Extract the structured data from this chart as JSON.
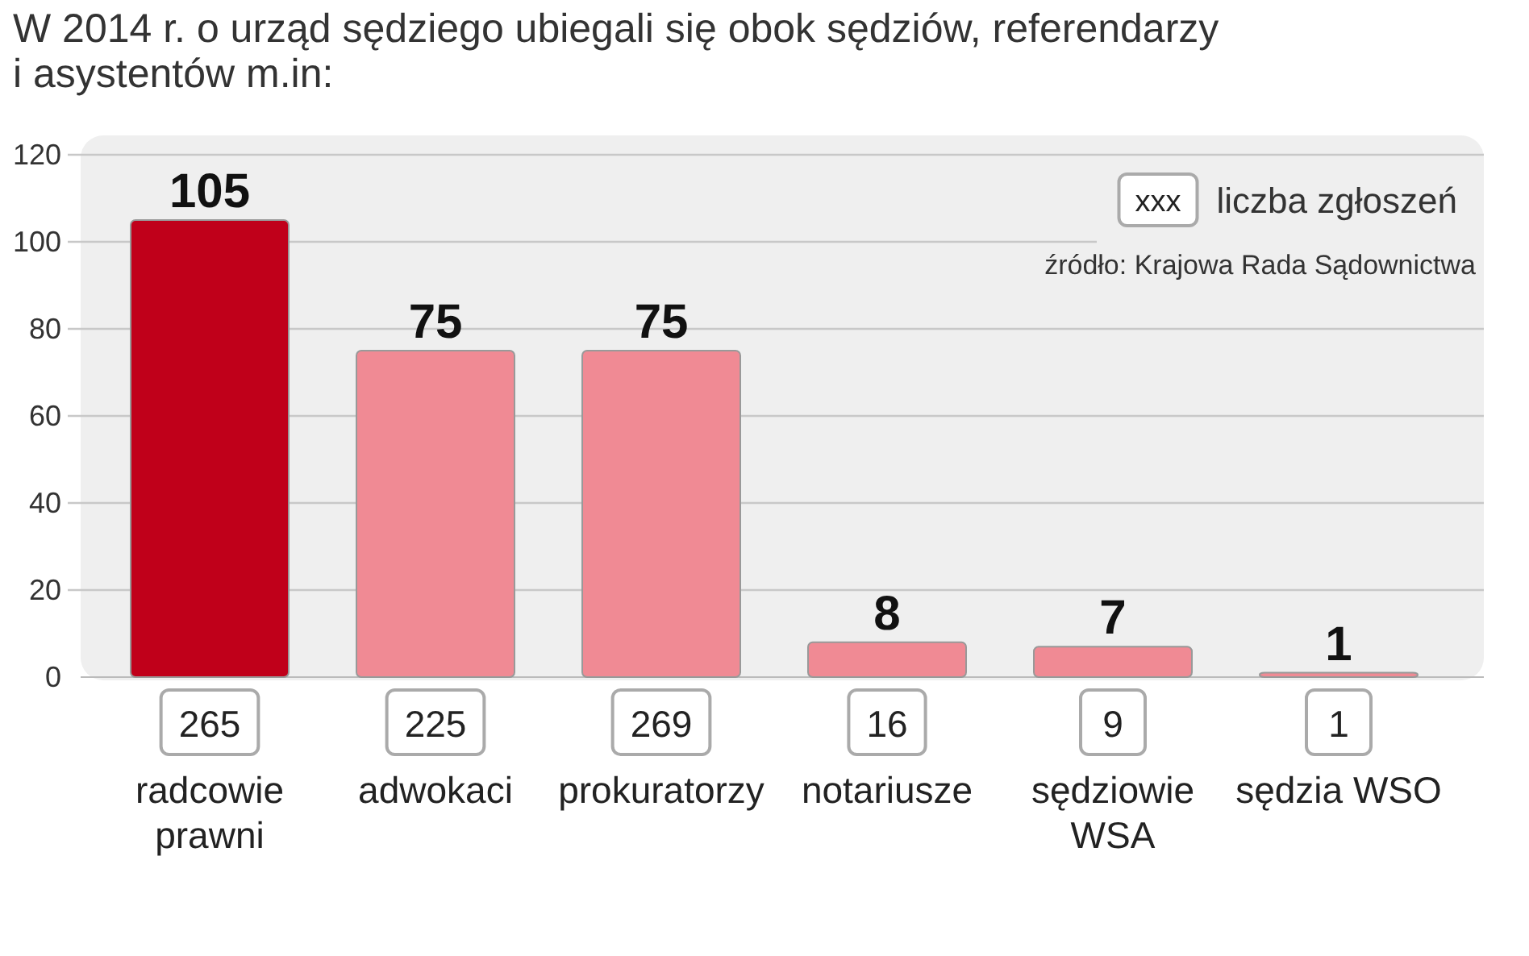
{
  "chart_data": {
    "type": "bar",
    "title": "W 2014 r. o urząd sędziego ubiegali się obok sędziów, referendarzy i asystentów m.in:",
    "categories": [
      "radcowie prawni",
      "adwokaci",
      "prokuratorzy",
      "notariusze",
      "sędziowie WSA",
      "sędzia WSO"
    ],
    "values": [
      105,
      75,
      75,
      8,
      7,
      1
    ],
    "colors": [
      "#c0001a",
      "#f08a94",
      "#f08a94",
      "#f08a94",
      "#f08a94",
      "#f08a94"
    ],
    "ylim": [
      0,
      120
    ],
    "yticks": [
      0,
      20,
      40,
      60,
      80,
      100,
      120
    ],
    "grid": "y",
    "data_labels": true,
    "annotations": [
      "265",
      "225",
      "269",
      "16",
      "9",
      "1",
      "xxx",
      "liczba zgłoszeń",
      "źródło: Krajowa Rada Sądownictwa"
    ]
  }
}
